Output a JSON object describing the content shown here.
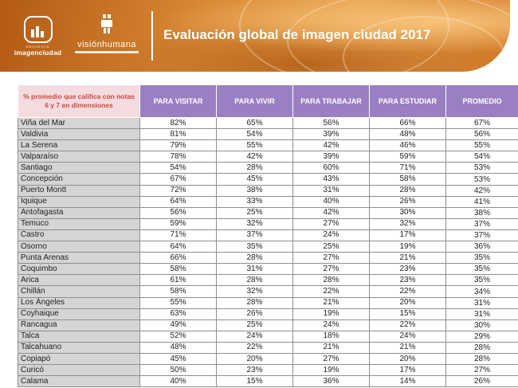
{
  "header": {
    "title": "Evaluación global de imagen ciudad 2017",
    "logo_left_top": "ENCUESTA",
    "logo_left_main": "imagenciudad",
    "logo_right_main": "visiónhumana"
  },
  "table": {
    "corner_label": "% promedio que califica con notas 6 y 7 en dimensiones",
    "columns": [
      "PARA VISITAR",
      "PARA VIVIR",
      "PARA TRABAJAR",
      "PARA ESTUDIAR",
      "PROMEDIO"
    ],
    "rows": [
      {
        "city": "Viña del Mar",
        "visitar": "82%",
        "vivir": "65%",
        "trabajar": "56%",
        "estudiar": "66%",
        "promedio": "67%"
      },
      {
        "city": "Valdivia",
        "visitar": "81%",
        "vivir": "54%",
        "trabajar": "39%",
        "estudiar": "48%",
        "promedio": "56%"
      },
      {
        "city": "La Serena",
        "visitar": "79%",
        "vivir": "55%",
        "trabajar": "42%",
        "estudiar": "46%",
        "promedio": "55%"
      },
      {
        "city": "Valparaíso",
        "visitar": "78%",
        "vivir": "42%",
        "trabajar": "39%",
        "estudiar": "59%",
        "promedio": "54%"
      },
      {
        "city": "Santiago",
        "visitar": "54%",
        "vivir": "28%",
        "trabajar": "60%",
        "estudiar": "71%",
        "promedio": "53%"
      },
      {
        "city": "Concepción",
        "visitar": "67%",
        "vivir": "45%",
        "trabajar": "43%",
        "estudiar": "58%",
        "promedio": "53%"
      },
      {
        "city": "Puerto Montt",
        "visitar": "72%",
        "vivir": "38%",
        "trabajar": "31%",
        "estudiar": "28%",
        "promedio": "42%"
      },
      {
        "city": "Iquique",
        "visitar": "64%",
        "vivir": "33%",
        "trabajar": "40%",
        "estudiar": "26%",
        "promedio": "41%"
      },
      {
        "city": "Antofagasta",
        "visitar": "56%",
        "vivir": "25%",
        "trabajar": "42%",
        "estudiar": "30%",
        "promedio": "38%"
      },
      {
        "city": "Temuco",
        "visitar": "59%",
        "vivir": "32%",
        "trabajar": "27%",
        "estudiar": "32%",
        "promedio": "37%"
      },
      {
        "city": "Castro",
        "visitar": "71%",
        "vivir": "37%",
        "trabajar": "24%",
        "estudiar": "17%",
        "promedio": "37%"
      },
      {
        "city": "Osorno",
        "visitar": "64%",
        "vivir": "35%",
        "trabajar": "25%",
        "estudiar": "19%",
        "promedio": "36%"
      },
      {
        "city": "Punta Arenas",
        "visitar": "66%",
        "vivir": "28%",
        "trabajar": "27%",
        "estudiar": "21%",
        "promedio": "35%"
      },
      {
        "city": "Coquimbo",
        "visitar": "58%",
        "vivir": "31%",
        "trabajar": "27%",
        "estudiar": "23%",
        "promedio": "35%"
      },
      {
        "city": "Arica",
        "visitar": "61%",
        "vivir": "28%",
        "trabajar": "28%",
        "estudiar": "23%",
        "promedio": "35%"
      },
      {
        "city": "Chillán",
        "visitar": "58%",
        "vivir": "32%",
        "trabajar": "22%",
        "estudiar": "22%",
        "promedio": "34%"
      },
      {
        "city": "Los Ángeles",
        "visitar": "55%",
        "vivir": "28%",
        "trabajar": "21%",
        "estudiar": "20%",
        "promedio": "31%"
      },
      {
        "city": "Coyhaique",
        "visitar": "63%",
        "vivir": "26%",
        "trabajar": "19%",
        "estudiar": "15%",
        "promedio": "31%"
      },
      {
        "city": "Rancagua",
        "visitar": "49%",
        "vivir": "25%",
        "trabajar": "24%",
        "estudiar": "22%",
        "promedio": "30%"
      },
      {
        "city": "Talca",
        "visitar": "52%",
        "vivir": "24%",
        "trabajar": "18%",
        "estudiar": "24%",
        "promedio": "29%"
      },
      {
        "city": "Talcahuano",
        "visitar": "48%",
        "vivir": "22%",
        "trabajar": "21%",
        "estudiar": "21%",
        "promedio": "28%"
      },
      {
        "city": "Copiapó",
        "visitar": "45%",
        "vivir": "20%",
        "trabajar": "27%",
        "estudiar": "20%",
        "promedio": "28%"
      },
      {
        "city": "Curicó",
        "visitar": "50%",
        "vivir": "23%",
        "trabajar": "19%",
        "estudiar": "17%",
        "promedio": "27%"
      },
      {
        "city": "Calama",
        "visitar": "40%",
        "vivir": "15%",
        "trabajar": "36%",
        "estudiar": "14%",
        "promedio": "26%"
      }
    ]
  }
}
